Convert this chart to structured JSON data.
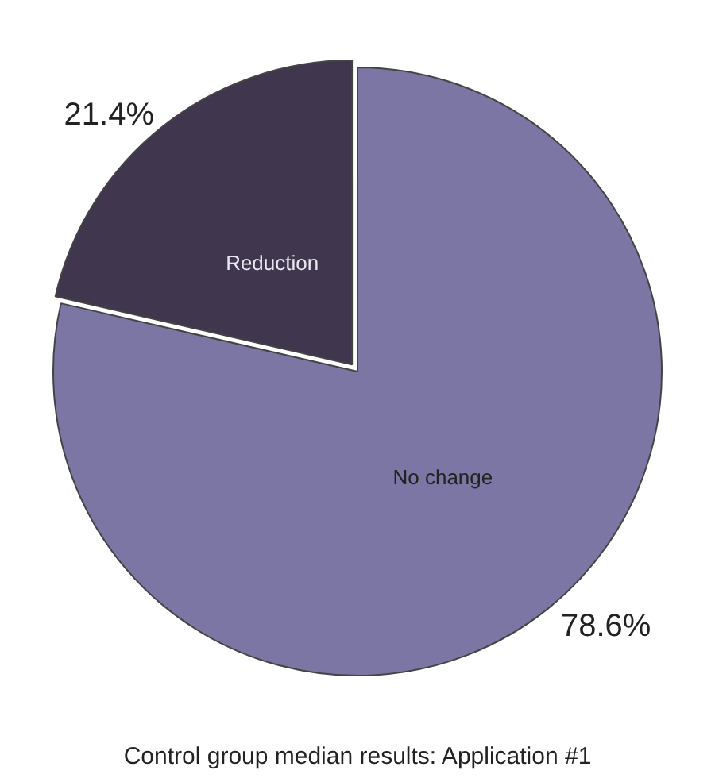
{
  "chart_data": {
    "type": "pie",
    "title": "Control group median results: Application #1",
    "categories": [
      "No change",
      "Reduction"
    ],
    "values": [
      78.6,
      21.4
    ],
    "colors": [
      "#7b76a3",
      "#40374f"
    ],
    "value_labels": [
      "78.6%",
      "21.4%"
    ],
    "legend": false
  }
}
